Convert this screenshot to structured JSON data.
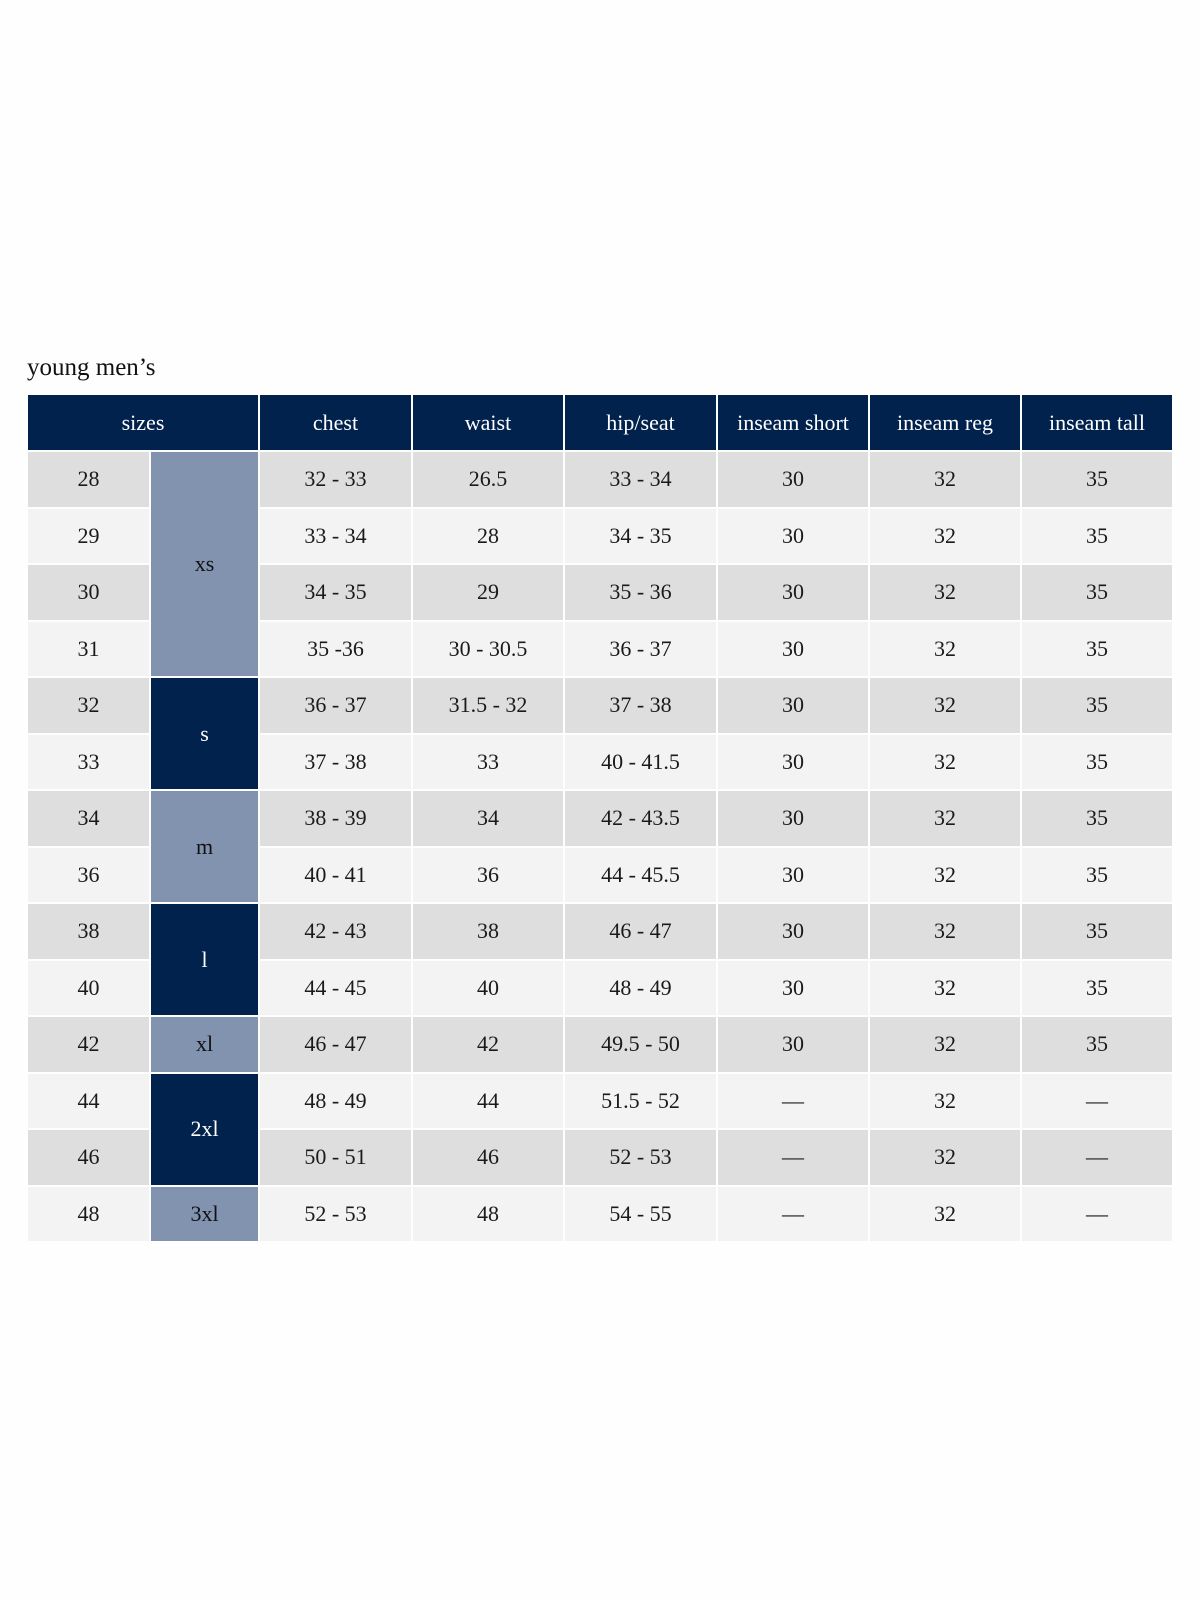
{
  "title": "young men’s",
  "colors": {
    "header": "#00224d",
    "size_light": "#8293b0",
    "size_dark": "#00224d",
    "row_odd": "#dedede",
    "row_even": "#f3f3f3"
  },
  "headers": [
    "sizes",
    "chest",
    "waist",
    "hip/seat",
    "inseam short",
    "inseam reg",
    "inseam tall"
  ],
  "size_groups": [
    {
      "label": "xs",
      "rows": 4,
      "style": "light"
    },
    {
      "label": "s",
      "rows": 2,
      "style": "dark"
    },
    {
      "label": "m",
      "rows": 2,
      "style": "light"
    },
    {
      "label": "l",
      "rows": 2,
      "style": "dark"
    },
    {
      "label": "xl",
      "rows": 1,
      "style": "light"
    },
    {
      "label": "2xl",
      "rows": 2,
      "style": "dark"
    },
    {
      "label": "3xl",
      "rows": 1,
      "style": "light"
    }
  ],
  "rows": [
    [
      "28",
      "32 - 33",
      "26.5",
      "33 - 34",
      "30",
      "32",
      "35"
    ],
    [
      "29",
      "33 - 34",
      "28",
      "34 - 35",
      "30",
      "32",
      "35"
    ],
    [
      "30",
      "34 - 35",
      "29",
      "35 - 36",
      "30",
      "32",
      "35"
    ],
    [
      "31",
      "35 -36",
      "30 - 30.5",
      "36 - 37",
      "30",
      "32",
      "35"
    ],
    [
      "32",
      "36 - 37",
      "31.5 - 32",
      "37 - 38",
      "30",
      "32",
      "35"
    ],
    [
      "33",
      "37 - 38",
      "33",
      "40 - 41.5",
      "30",
      "32",
      "35"
    ],
    [
      "34",
      "38 - 39",
      "34",
      "42 - 43.5",
      "30",
      "32",
      "35"
    ],
    [
      "36",
      "40 - 41",
      "36",
      "44 - 45.5",
      "30",
      "32",
      "35"
    ],
    [
      "38",
      "42 - 43",
      "38",
      "46 - 47",
      "30",
      "32",
      "35"
    ],
    [
      "40",
      "44 - 45",
      "40",
      "48 - 49",
      "30",
      "32",
      "35"
    ],
    [
      "42",
      "46 - 47",
      "42",
      "49.5 - 50",
      "30",
      "32",
      "35"
    ],
    [
      "44",
      "48 - 49",
      "44",
      "51.5 - 52",
      "—",
      "32",
      "—"
    ],
    [
      "46",
      "50 - 51",
      "46",
      "52 - 53",
      "—",
      "32",
      "—"
    ],
    [
      "48",
      "52 - 53",
      "48",
      "54 - 55",
      "—",
      "32",
      "—"
    ]
  ]
}
